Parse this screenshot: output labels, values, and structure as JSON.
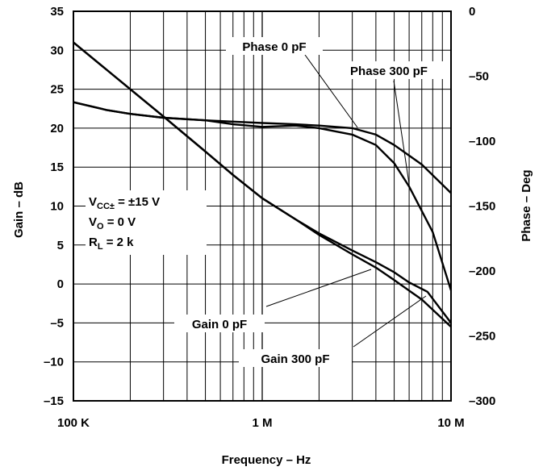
{
  "chart_data": {
    "type": "line",
    "title": "",
    "xlabel": "Frequency – Hz",
    "ylabel": "Gain – dB",
    "y2label": "Phase – Deg",
    "x_scale": "log",
    "xlim": [
      100000,
      10000000
    ],
    "ylim": [
      -15,
      35
    ],
    "y2lim": [
      -300,
      0
    ],
    "grid": true,
    "x_ticks": [
      100000,
      1000000,
      10000000
    ],
    "x_tick_labels": [
      "100 K",
      "1 M",
      "10 M"
    ],
    "y_ticks": [
      35,
      30,
      25,
      20,
      15,
      10,
      5,
      0,
      -5,
      -10,
      -15
    ],
    "y_tick_labels": [
      "35",
      "30",
      "25",
      "20",
      "15",
      "10",
      "5",
      "0",
      "–5",
      "–10",
      "–15"
    ],
    "y2_ticks": [
      0,
      -50,
      -100,
      -150,
      -200,
      -250,
      -300
    ],
    "y2_tick_labels": [
      "0",
      "–50",
      "–100",
      "–150",
      "–200",
      "–250",
      "–300"
    ],
    "conditions": {
      "line1_main": "V",
      "line1_sub": "CC±",
      "line1_rest": " = ±15 V",
      "line2_main": "V",
      "line2_sub": "O",
      "line2_rest": " = 0 V",
      "line3_main": "R",
      "line3_sub": "L",
      "line3_rest": " = 2 k"
    },
    "series": [
      {
        "name": "Gain 0 pF",
        "axis": "left",
        "x": [
          100000,
          150000,
          200000,
          300000,
          500000,
          700000,
          1000000,
          1500000,
          2000000,
          3000000,
          4000000,
          5000000,
          7000000,
          10000000
        ],
        "y": [
          31,
          27.5,
          25,
          21.5,
          17,
          14,
          11,
          8.3,
          6.3,
          3.8,
          2.1,
          0.5,
          -2,
          -5.5
        ]
      },
      {
        "name": "Gain 300 pF",
        "axis": "left",
        "x": [
          100000,
          150000,
          200000,
          300000,
          500000,
          700000,
          1000000,
          1500000,
          2000000,
          3000000,
          4000000,
          5000000,
          6000000,
          7500000,
          10000000
        ],
        "y": [
          31,
          27.5,
          25,
          21.5,
          17,
          14,
          11,
          8.3,
          6.5,
          4.3,
          2.8,
          1.5,
          0.2,
          -1,
          -5
        ]
      },
      {
        "name": "Phase 0 pF",
        "axis": "right",
        "x": [
          100000,
          150000,
          200000,
          300000,
          500000,
          700000,
          1000000,
          1500000,
          2000000,
          3000000,
          4000000,
          5000000,
          7000000,
          10000000
        ],
        "y": [
          -70,
          -76,
          -79,
          -82,
          -84,
          -85,
          -86,
          -87,
          -88,
          -90,
          -95,
          -103,
          -118,
          -140
        ]
      },
      {
        "name": "Phase 300 pF",
        "axis": "right",
        "x": [
          100000,
          150000,
          200000,
          300000,
          500000,
          700000,
          1000000,
          1500000,
          2000000,
          3000000,
          4000000,
          5000000,
          6000000,
          8000000,
          10000000
        ],
        "y": [
          -70,
          -76,
          -79,
          -82,
          -84,
          -87,
          -89,
          -88,
          -90,
          -95,
          -103,
          -117,
          -135,
          -170,
          -215
        ]
      }
    ],
    "annotations": [
      "Phase 0 pF",
      "Phase 300 pF",
      "Gain 0 pF",
      "Gain 300 pF"
    ]
  }
}
